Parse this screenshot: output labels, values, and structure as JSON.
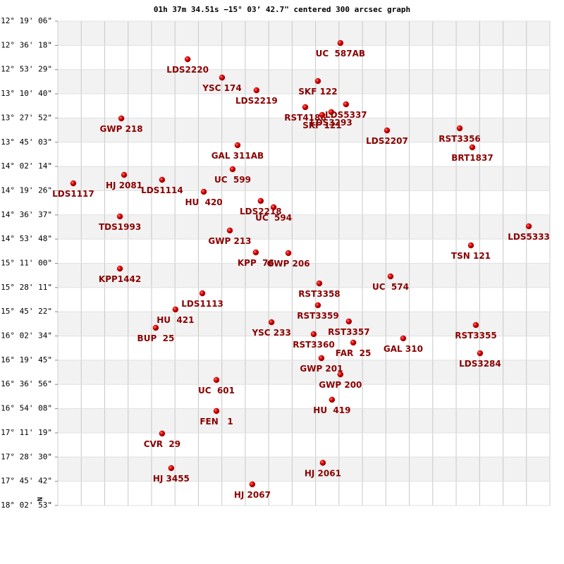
{
  "chart_data": {
    "type": "scatter",
    "title": "01h 37m 34.51s −15° 03’ 42.7\" centered 300 arcsec graph",
    "north_label": "N",
    "color": "#cc0000",
    "grid": true,
    "xlim": [
      0,
      21
    ],
    "xticks": [
      1,
      2,
      3,
      4,
      5,
      6,
      7,
      8,
      9,
      10,
      11,
      12,
      13,
      14,
      15,
      16,
      17,
      18,
      19,
      20
    ],
    "ylim": [
      -18.04806,
      -12.31833
    ],
    "yticks": [
      {
        "value": -12.31833,
        "label": "-12° 19' 06\""
      },
      {
        "value": -12.605,
        "label": "-12° 36' 18\""
      },
      {
        "value": -12.89139,
        "label": "-12° 53' 29\""
      },
      {
        "value": -13.17778,
        "label": "-13° 10' 40\""
      },
      {
        "value": -13.46444,
        "label": "-13° 27' 52\""
      },
      {
        "value": -13.75083,
        "label": "-13° 45' 03\""
      },
      {
        "value": -14.03722,
        "label": "-14° 02' 14\""
      },
      {
        "value": -14.32389,
        "label": "-14° 19' 26\""
      },
      {
        "value": -14.61028,
        "label": "-14° 36' 37\""
      },
      {
        "value": -14.89667,
        "label": "-14° 53' 48\""
      },
      {
        "value": -15.18333,
        "label": "-15° 11' 00\""
      },
      {
        "value": -15.46972,
        "label": "-15° 28' 11\""
      },
      {
        "value": -15.75611,
        "label": "-15° 45' 22\""
      },
      {
        "value": -16.04278,
        "label": "-16° 02' 34\""
      },
      {
        "value": -16.32917,
        "label": "-16° 19' 45\""
      },
      {
        "value": -16.61556,
        "label": "-16° 36' 56\""
      },
      {
        "value": -16.90222,
        "label": "-16° 54' 08\""
      },
      {
        "value": -17.18861,
        "label": "-17° 11' 19\""
      },
      {
        "value": -17.475,
        "label": "-17° 28' 30\""
      },
      {
        "value": -17.76167,
        "label": "-17° 45' 42\""
      },
      {
        "value": -18.04806,
        "label": "-18° 02' 53\""
      }
    ],
    "labels": [
      "UC  587AB",
      "LDS2220",
      "YSC 174",
      "SKF 122",
      "LDS2219",
      "LDS5337",
      "RST4186",
      "LDS3293",
      "SKF 121",
      "GWP 218",
      "LDS2207",
      "RST3356",
      "BRT1837",
      "GAL 311AB",
      "UC  599",
      "HJ 2081",
      "LDS1114",
      "LDS1117",
      "HU  420",
      "LDS2218",
      "UC  594",
      "TDS1993",
      "LDS5333",
      "GWP 213",
      "TSN 121",
      "KPP  76",
      "GWP 206",
      "KPP1442",
      "UC  574",
      "RST3358",
      "LDS1113",
      "RST3359",
      "HU  421",
      "YSC 233",
      "RST3357",
      "BUP  25",
      "RST3355",
      "RST3360",
      "FAR  25",
      "GAL 310",
      "LDS3284",
      "GWP 201",
      "GWP 200",
      "UC  601",
      "HU  419",
      "FEN   1",
      "CVR  29",
      "HJ 2061",
      "HJ 3455",
      "HJ 2067"
    ],
    "x": [
      12.06,
      5.54,
      7.01,
      11.1,
      8.48,
      12.3,
      10.56,
      11.67,
      11.28,
      2.71,
      14.05,
      17.15,
      17.69,
      7.67,
      7.46,
      2.83,
      4.45,
      0.66,
      6.23,
      8.66,
      9.21,
      2.65,
      20.1,
      7.34,
      17.63,
      8.45,
      9.84,
      2.65,
      14.2,
      11.16,
      6.17,
      11.1,
      5.02,
      9.12,
      12.42,
      4.18,
      17.84,
      10.92,
      12.61,
      14.74,
      18.02,
      11.25,
      12.06,
      6.77,
      11.7,
      6.77,
      4.45,
      11.31,
      4.84,
      8.3
    ],
    "values": [
      -12.577,
      -12.769,
      -12.986,
      -13.027,
      -13.136,
      -13.302,
      -13.336,
      -13.394,
      -13.428,
      -13.469,
      -13.611,
      -13.586,
      -13.811,
      -13.786,
      -14.07,
      -14.137,
      -14.195,
      -14.237,
      -14.337,
      -14.445,
      -14.52,
      -14.629,
      -14.745,
      -14.795,
      -14.971,
      -15.054,
      -15.062,
      -15.246,
      -15.338,
      -15.421,
      -15.538,
      -15.679,
      -15.729,
      -15.88,
      -15.871,
      -15.946,
      -15.913,
      -16.021,
      -16.121,
      -16.071,
      -16.247,
      -16.305,
      -16.497,
      -16.563,
      -16.797,
      -16.93,
      -17.197,
      -17.543,
      -17.606,
      -17.798
    ]
  }
}
